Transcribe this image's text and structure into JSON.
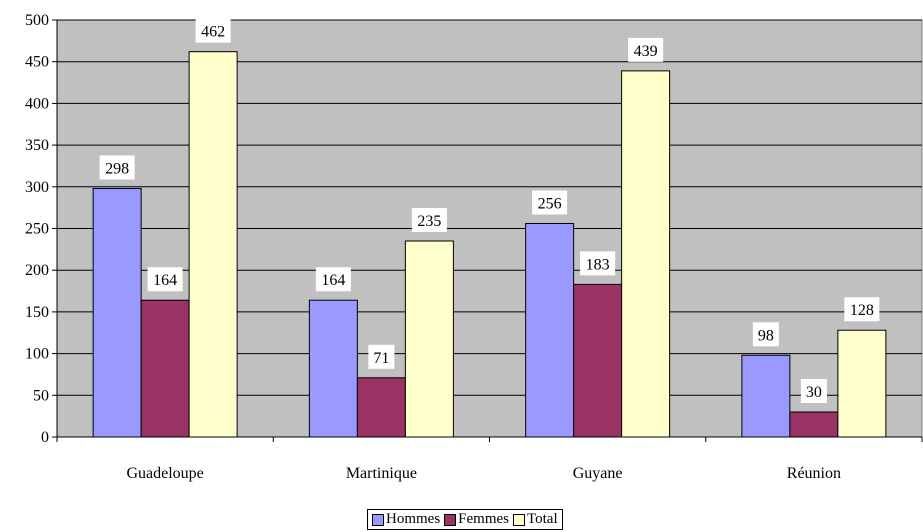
{
  "chart_data": {
    "type": "bar",
    "categories": [
      "Guadeloupe",
      "Martinique",
      "Guyane",
      "Réunion"
    ],
    "series": [
      {
        "name": "Hommes",
        "values": [
          298,
          164,
          256,
          98
        ],
        "color": "#9999ff"
      },
      {
        "name": "Femmes",
        "values": [
          164,
          71,
          183,
          30
        ],
        "color": "#993366"
      },
      {
        "name": "Total",
        "values": [
          462,
          235,
          439,
          128
        ],
        "color": "#ffffcc"
      }
    ],
    "ylim": [
      0,
      500
    ],
    "yticks": [
      0,
      50,
      100,
      150,
      200,
      250,
      300,
      350,
      400,
      450,
      500
    ],
    "title": "",
    "xlabel": "",
    "ylabel": "",
    "grid": true,
    "plot_background": "#c0c0c0",
    "legend_position": "bottom"
  },
  "legend": {
    "items": [
      "Hommes",
      "Femmes",
      "Total"
    ]
  }
}
